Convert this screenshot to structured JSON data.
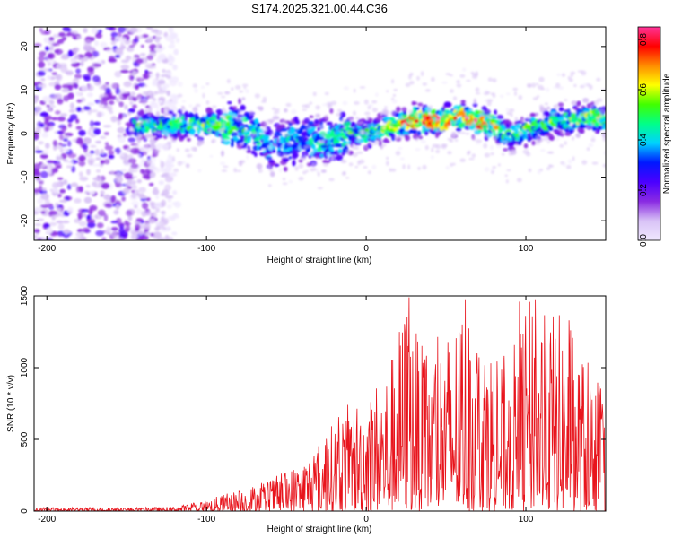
{
  "figure": {
    "title": "S174.2025.321.00.44.C36"
  },
  "chart_data": [
    {
      "type": "heatmap",
      "name": "spectrogram",
      "title": "S174.2025.321.00.44.C36",
      "xlabel": "Height of straight line (km)",
      "ylabel": "Frequency (Hz)",
      "xlim": [
        -208,
        150
      ],
      "ylim": [
        -24.5,
        24.5
      ],
      "xticks": [
        -200,
        -100,
        0,
        100
      ],
      "xtick_labels": [
        "-200",
        "-100",
        "0",
        "100"
      ],
      "yticks": [
        -20,
        -10,
        0,
        10,
        20
      ],
      "ytick_labels": [
        "-20",
        "-10",
        "0",
        "10",
        "20"
      ],
      "colorbar": {
        "label": "Normalized spectral amplitude",
        "range": [
          0.0,
          0.85
        ],
        "ticks": [
          0.0,
          0.2,
          0.4,
          0.6,
          0.8
        ],
        "tick_labels": [
          "0.0",
          "0.2",
          "0.4",
          "0.6",
          "0.8"
        ],
        "colors": [
          "#f0e8ff",
          "#d8c2f6",
          "#8a2be2",
          "#4b00ff",
          "#0018ff",
          "#00d2ff",
          "#00ff8a",
          "#40ff00",
          "#ffff00",
          "#ff8c00",
          "#ff0000",
          "#ff3399"
        ]
      },
      "noise_region_x": [
        -208,
        -118
      ],
      "ridge": {
        "x": [
          -145,
          -130,
          -110,
          -90,
          -80,
          -70,
          -60,
          -50,
          -40,
          -30,
          -20,
          -10,
          0,
          10,
          20,
          30,
          40,
          50,
          60,
          70,
          80,
          90,
          100,
          110,
          120,
          130,
          140,
          150
        ],
        "freq": [
          2,
          2,
          2,
          2,
          1.5,
          0,
          -3,
          -2,
          -1,
          -2,
          -1,
          0,
          0,
          1,
          2,
          3,
          3,
          3,
          4,
          3,
          2,
          -1,
          1,
          2,
          3,
          3,
          4,
          3
        ],
        "amplitude": [
          0.45,
          0.5,
          0.55,
          0.55,
          0.5,
          0.45,
          0.4,
          0.45,
          0.4,
          0.45,
          0.45,
          0.5,
          0.5,
          0.55,
          0.65,
          0.8,
          0.8,
          0.75,
          0.7,
          0.8,
          0.65,
          0.5,
          0.55,
          0.5,
          0.55,
          0.55,
          0.6,
          0.55
        ]
      }
    },
    {
      "type": "line",
      "name": "snr",
      "xlabel": "Height of straight line (km)",
      "ylabel": "SNR (10 * v/v)",
      "xlim": [
        -208,
        150
      ],
      "ylim": [
        0,
        1500
      ],
      "xticks": [
        -200,
        -100,
        0,
        100
      ],
      "xtick_labels": [
        "-200",
        "-100",
        "0",
        "100"
      ],
      "yticks": [
        0,
        500,
        1000,
        1500
      ],
      "ytick_labels": [
        "0",
        "500",
        "1000",
        "1500"
      ],
      "color": "#e8141c",
      "envelope": {
        "x": [
          -208,
          -150,
          -120,
          -100,
          -80,
          -60,
          -45,
          -30,
          -15,
          -5,
          5,
          15,
          25,
          35,
          50,
          62,
          75,
          90,
          100,
          110,
          125,
          135,
          145,
          150
        ],
        "max": [
          25,
          25,
          30,
          80,
          150,
          220,
          320,
          470,
          720,
          800,
          900,
          1050,
          1500,
          1150,
          1250,
          1480,
          1200,
          1050,
          1470,
          1480,
          1350,
          1100,
          950,
          800
        ]
      },
      "peaks": [
        {
          "x": 27,
          "y": 1490
        },
        {
          "x": 62,
          "y": 1470
        },
        {
          "x": 96,
          "y": 1460
        },
        {
          "x": 106,
          "y": 1470
        },
        {
          "x": 127,
          "y": 1330
        }
      ]
    }
  ]
}
